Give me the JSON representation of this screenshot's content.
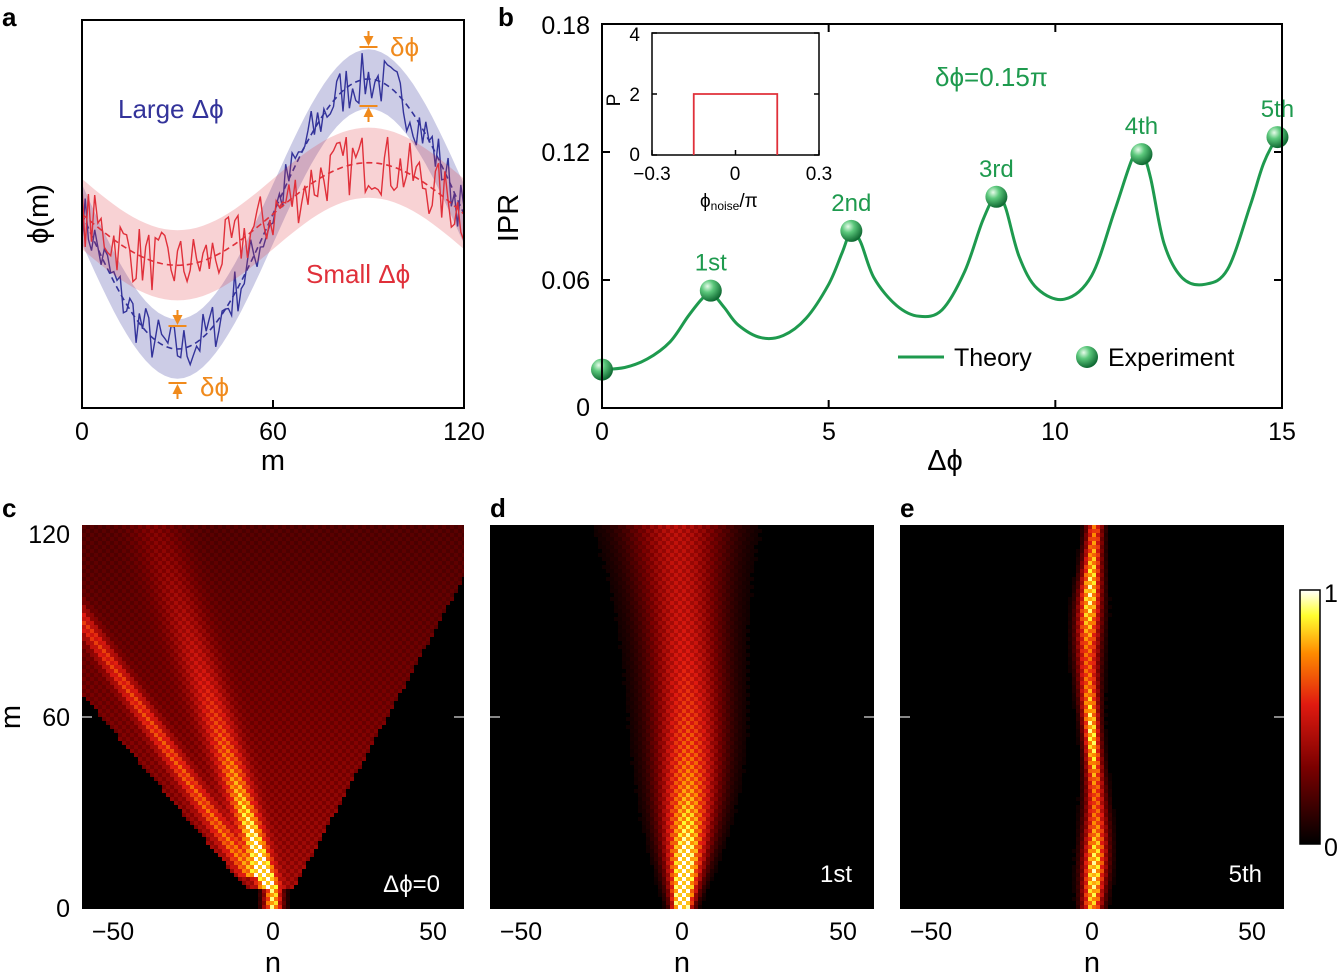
{
  "panel_letters": {
    "a": "a",
    "b": "b",
    "c": "c",
    "d": "d",
    "e": "e"
  },
  "colors": {
    "blue": "#33339a",
    "red": "#e0303a",
    "green": "#1e9a4e",
    "orange": "#f08a1c"
  },
  "chart_data": [
    {
      "id": "a",
      "type": "line",
      "xlabel": "m",
      "ylabel": "ϕ(m)",
      "xlim": [
        0,
        120
      ],
      "xticks": [
        "0",
        "60",
        "120"
      ],
      "series": [
        {
          "name": "Large Δϕ",
          "color": "#33339a",
          "amplitude": 1.0,
          "baseline": 0.0
        },
        {
          "name": "Small Δϕ",
          "color": "#e0303a",
          "amplitude": 0.38,
          "baseline": 0.0
        }
      ],
      "annotation": "δϕ"
    },
    {
      "id": "b",
      "type": "line",
      "xlabel": "Δϕ",
      "ylabel": "IPR",
      "xlim": [
        0,
        15
      ],
      "ylim": [
        0,
        0.18
      ],
      "xticks": [
        "0",
        "5",
        "10",
        "15"
      ],
      "yticks": [
        "0",
        "0.06",
        "0.12",
        "0.18"
      ],
      "note": "δϕ=0.15π",
      "theory": {
        "name": "Theory",
        "x": [
          0,
          0.5,
          1.0,
          1.5,
          1.9,
          2.2,
          2.4,
          2.7,
          3.0,
          3.5,
          4.0,
          4.5,
          5.0,
          5.3,
          5.5,
          5.7,
          6.0,
          6.5,
          7.0,
          7.5,
          8.0,
          8.4,
          8.7,
          8.9,
          9.2,
          9.6,
          10.2,
          10.8,
          11.3,
          11.7,
          11.9,
          12.1,
          12.4,
          12.8,
          13.3,
          13.8,
          14.3,
          14.6,
          14.9,
          15.0
        ],
        "y": [
          0.018,
          0.019,
          0.023,
          0.031,
          0.043,
          0.051,
          0.054,
          0.047,
          0.039,
          0.033,
          0.034,
          0.042,
          0.058,
          0.073,
          0.083,
          0.078,
          0.061,
          0.048,
          0.043,
          0.046,
          0.064,
          0.088,
          0.1,
          0.094,
          0.071,
          0.056,
          0.051,
          0.062,
          0.092,
          0.117,
          0.12,
          0.108,
          0.077,
          0.061,
          0.058,
          0.065,
          0.095,
          0.115,
          0.127,
          0.127
        ]
      },
      "experiment": {
        "name": "Experiment",
        "x": [
          0,
          2.4,
          5.5,
          8.7,
          11.9,
          14.9
        ],
        "y": [
          0.018,
          0.055,
          0.083,
          0.099,
          0.119,
          0.127
        ],
        "labels": [
          "",
          "1st",
          "2nd",
          "3rd",
          "4th",
          "5th"
        ]
      },
      "inset": {
        "xlabel": "ϕ",
        "xlabel_sub": "noise",
        "xlabel_tail": "/π",
        "ylabel": "P",
        "xlim": [
          -0.3,
          0.3
        ],
        "ylim": [
          0,
          4
        ],
        "xticks": [
          "−0.3",
          "0",
          "0.3"
        ],
        "yticks": [
          "0",
          "2",
          "4"
        ],
        "rect": {
          "x0": -0.15,
          "x1": 0.15,
          "height": 2.0
        }
      }
    },
    {
      "id": "c",
      "type": "heatmap",
      "xlabel": "n",
      "ylabel": "m",
      "xticks": [
        "−50",
        "0",
        "50"
      ],
      "yticks": [
        "0",
        "60",
        "120"
      ],
      "label": "Δϕ=0"
    },
    {
      "id": "d",
      "type": "heatmap",
      "xlabel": "n",
      "xticks": [
        "−50",
        "0",
        "50"
      ],
      "label": "1st"
    },
    {
      "id": "e",
      "type": "heatmap",
      "xlabel": "n",
      "xticks": [
        "−50",
        "0",
        "50"
      ],
      "label": "5th"
    }
  ],
  "colorbar": {
    "max": "1",
    "min": "0"
  }
}
